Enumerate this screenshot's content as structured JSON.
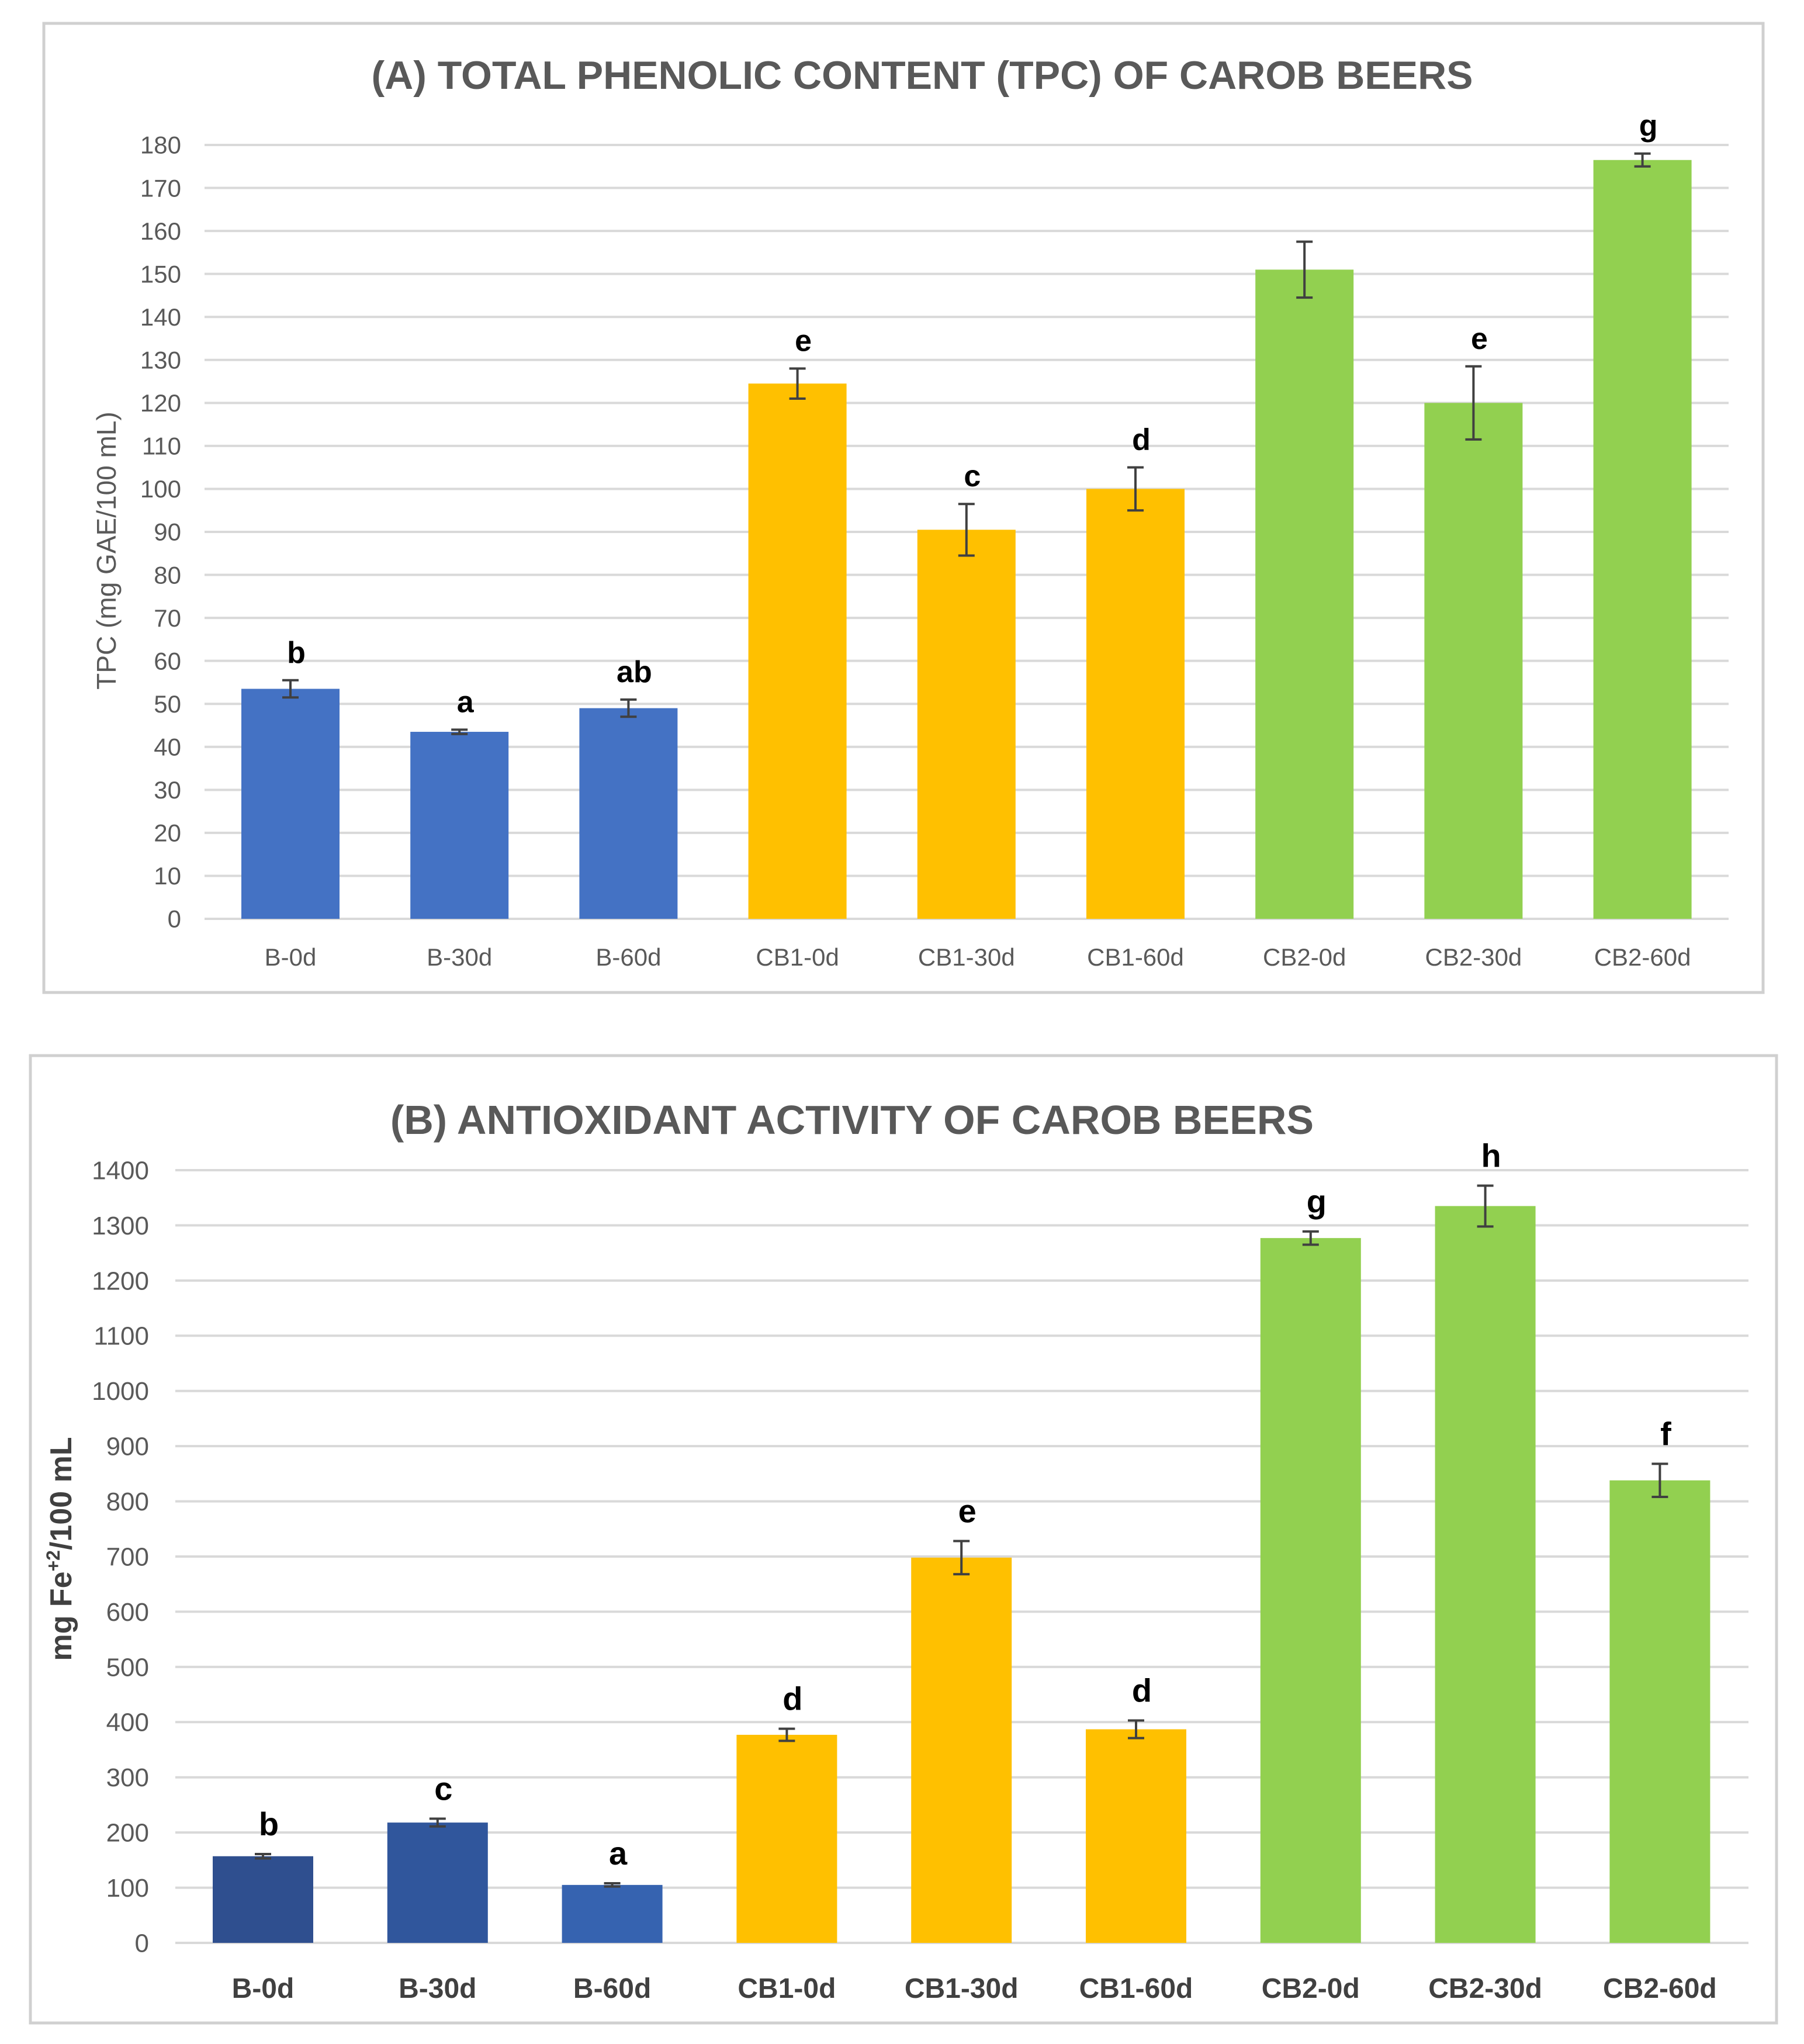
{
  "colors": {
    "blue": "#4472C4",
    "dark_blue_1": "#2F4F8F",
    "dark_blue_2": "#30569C",
    "dark_blue_3": "#3663B0",
    "yellow": "#FFC000",
    "green": "#92D050",
    "grid": "#D9D9D9",
    "error_bar": "#404040",
    "frame": "#D0D0D0"
  },
  "chart_data": [
    {
      "type": "bar",
      "title": "(A) TOTAL PHENOLIC CONTENT (TPC) OF CAROB BEERS",
      "xlabel": "",
      "ylabel": "TPC (mg GAE/100 mL)",
      "ylim": [
        0,
        180
      ],
      "yticks": [
        0,
        10,
        20,
        30,
        40,
        50,
        60,
        70,
        80,
        90,
        100,
        110,
        120,
        130,
        140,
        150,
        160,
        170,
        180
      ],
      "grid": true,
      "categories": [
        "B-0d",
        "B-30d",
        "B-60d",
        "CB1-0d",
        "CB1-30d",
        "CB1-60d",
        "CB2-0d",
        "CB2-30d",
        "CB2-60d"
      ],
      "values": [
        53.5,
        43.5,
        49,
        124.5,
        90.5,
        100,
        151,
        120,
        176.5
      ],
      "errors": [
        2,
        0.5,
        2,
        3.5,
        6,
        5,
        6.5,
        8.5,
        1.5
      ],
      "labels": [
        "b",
        "a",
        "ab",
        "e",
        "c",
        "d",
        "",
        "e",
        "g"
      ],
      "bar_colors": [
        "blue",
        "blue",
        "blue",
        "yellow",
        "yellow",
        "yellow",
        "green",
        "green",
        "green"
      ]
    },
    {
      "type": "bar",
      "title": "(B) ANTIOXIDANT ACTIVITY OF CAROB BEERS",
      "xlabel": "",
      "ylabel_main": "mg Fe",
      "ylabel_sup": "+2",
      "ylabel_tail": "/100 mL",
      "ylim": [
        0,
        1400
      ],
      "yticks": [
        0,
        100,
        200,
        300,
        400,
        500,
        600,
        700,
        800,
        900,
        1000,
        1100,
        1200,
        1300,
        1400
      ],
      "grid": true,
      "categories": [
        "B-0d",
        "B-30d",
        "B-60d",
        "CB1-0d",
        "CB1-30d",
        "CB1-60d",
        "CB2-0d",
        "CB2-30d",
        "CB2-60d"
      ],
      "values": [
        157,
        218,
        105,
        377,
        698,
        387,
        1277,
        1335,
        838
      ],
      "errors": [
        4,
        7,
        3,
        11,
        30,
        16,
        12,
        37,
        30
      ],
      "labels": [
        "b",
        "c",
        "a",
        "d",
        "e",
        "d",
        "g",
        "h",
        "f"
      ],
      "bar_colors": [
        "dark_blue_1",
        "dark_blue_2",
        "dark_blue_3",
        "yellow",
        "yellow",
        "yellow",
        "green",
        "green",
        "green"
      ]
    }
  ]
}
